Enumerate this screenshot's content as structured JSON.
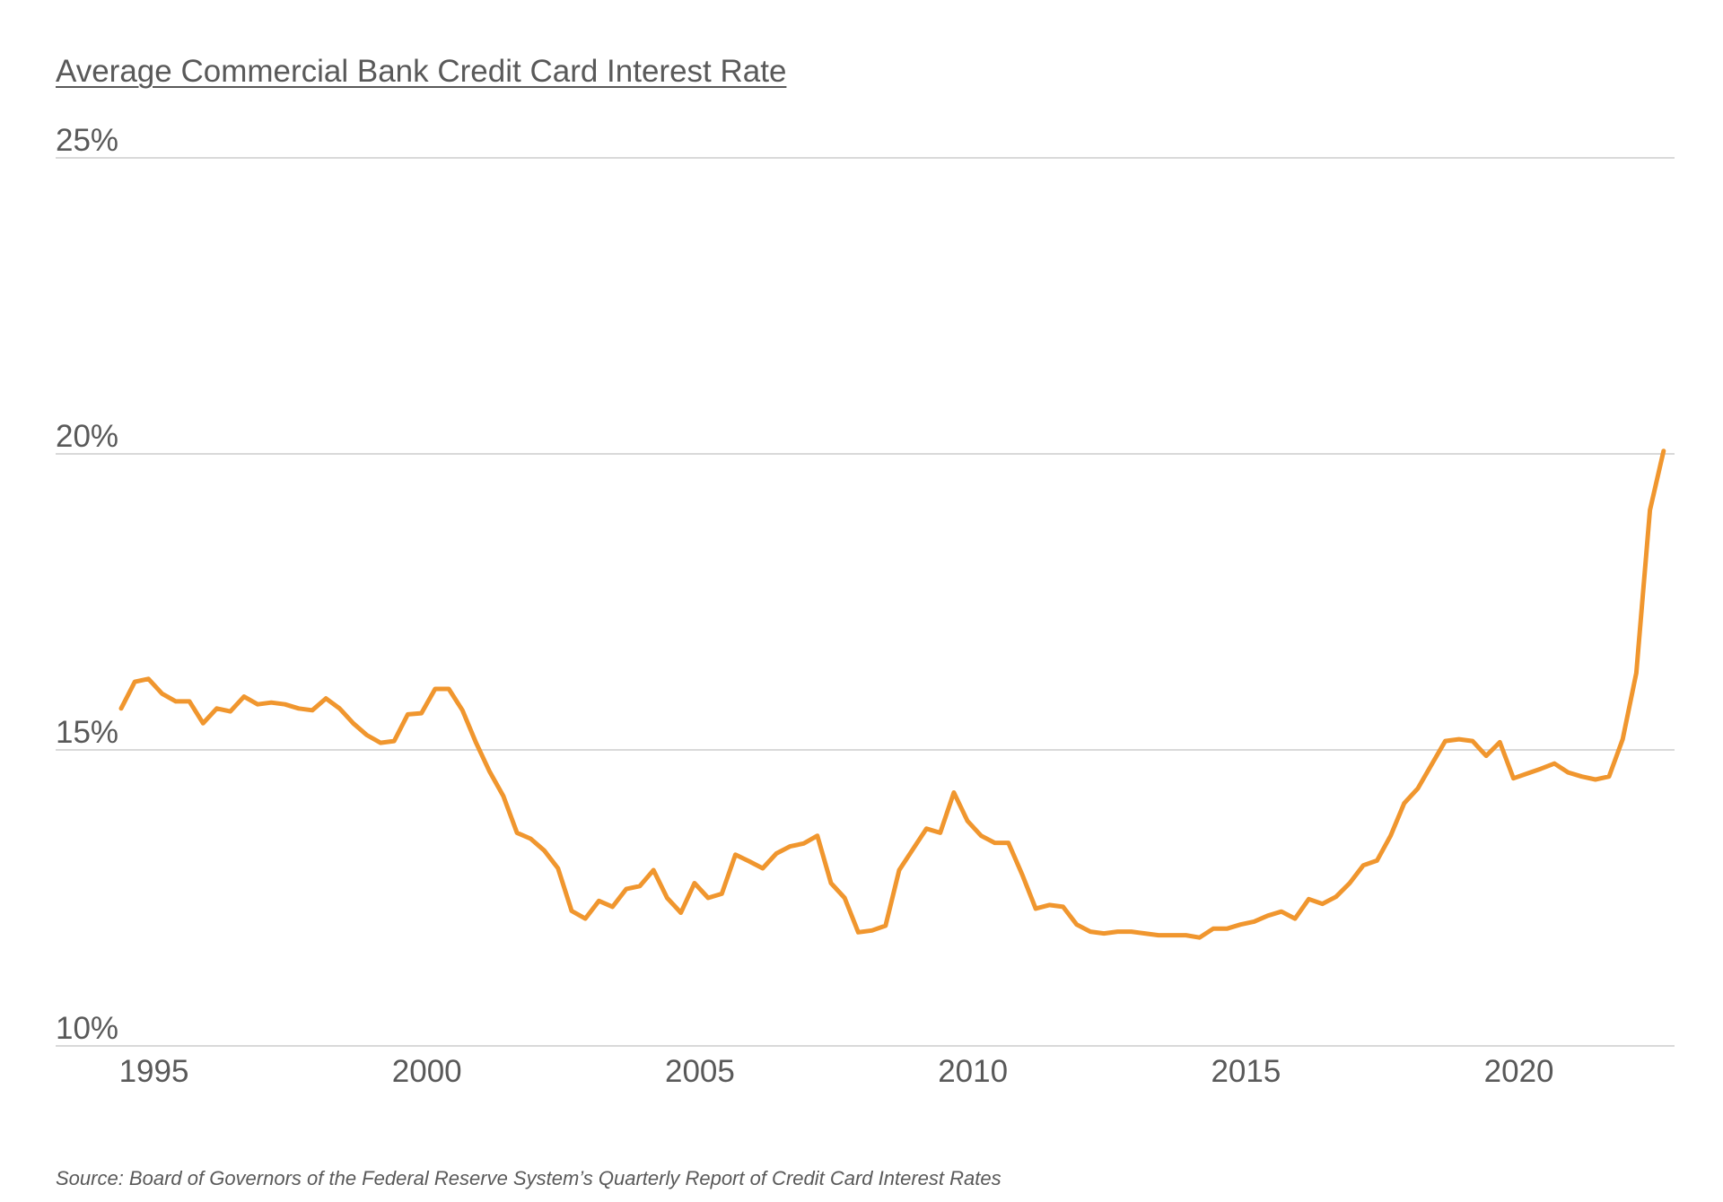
{
  "title": "Average Commercial Bank Credit Card Interest Rate",
  "source": "Source: Board of Governors of the Federal Reserve System’s Quarterly Report of Credit Card Interest Rates",
  "chart_data": {
    "type": "line",
    "title": "Average Commercial Bank Credit Card Interest Rate",
    "xlabel": "",
    "ylabel": "",
    "x_ticks": [
      1995,
      2000,
      2005,
      2010,
      2015,
      2020
    ],
    "x_tick_labels": [
      "1995",
      "2000",
      "2005",
      "2010",
      "2015",
      "2020"
    ],
    "y_ticks": [
      10,
      15,
      20,
      25
    ],
    "y_tick_labels": [
      "10%",
      "15%",
      "20%",
      "25%"
    ],
    "ylim": [
      10,
      25
    ],
    "xlim": [
      1993.2,
      2022.85
    ],
    "grid": "horizontal",
    "line_color": "#F0962E",
    "grid_color": "#D9D9D9",
    "text_color": "#595959",
    "series": [
      {
        "x": [
          1994.4,
          1994.65,
          1994.9,
          1995.15,
          1995.4,
          1995.65,
          1995.9,
          1996.15,
          1996.4,
          1996.65,
          1996.9,
          1997.15,
          1997.4,
          1997.65,
          1997.9,
          1998.15,
          1998.4,
          1998.65,
          1998.9,
          1999.15,
          1999.4,
          1999.65,
          1999.9,
          2000.15,
          2000.4,
          2000.65,
          2000.9,
          2001.15,
          2001.4,
          2001.65,
          2001.9,
          2002.15,
          2002.4,
          2002.65,
          2002.9,
          2003.15,
          2003.4,
          2003.65,
          2003.9,
          2004.15,
          2004.4,
          2004.65,
          2004.9,
          2005.15,
          2005.4,
          2005.65,
          2005.9,
          2006.15,
          2006.4,
          2006.65,
          2006.9,
          2007.15,
          2007.4,
          2007.65,
          2007.9,
          2008.15,
          2008.4,
          2008.65,
          2008.9,
          2009.15,
          2009.4,
          2009.65,
          2009.9,
          2010.15,
          2010.4,
          2010.65,
          2010.9,
          2011.15,
          2011.4,
          2011.65,
          2011.9,
          2012.15,
          2012.4,
          2012.65,
          2012.9,
          2013.15,
          2013.4,
          2013.65,
          2013.9,
          2014.15,
          2014.4,
          2014.65,
          2014.9,
          2015.15,
          2015.4,
          2015.65,
          2015.9,
          2016.15,
          2016.4,
          2016.65,
          2016.9,
          2017.15,
          2017.4,
          2017.65,
          2017.9,
          2018.15,
          2018.4,
          2018.65,
          2018.9,
          2019.15,
          2019.4,
          2019.65,
          2019.9,
          2020.15,
          2020.4,
          2020.65,
          2020.9,
          2021.15,
          2021.4,
          2021.65,
          2021.9,
          2022.15,
          2022.4,
          2022.65
        ],
        "values": [
          15.7,
          16.15,
          16.2,
          15.95,
          15.82,
          15.82,
          15.45,
          15.7,
          15.65,
          15.9,
          15.77,
          15.8,
          15.77,
          15.7,
          15.67,
          15.87,
          15.7,
          15.45,
          15.25,
          15.12,
          15.15,
          15.6,
          15.62,
          16.03,
          16.03,
          15.67,
          15.12,
          14.63,
          14.22,
          13.6,
          13.5,
          13.3,
          13.0,
          12.28,
          12.15,
          12.45,
          12.35,
          12.65,
          12.7,
          12.97,
          12.5,
          12.25,
          12.75,
          12.5,
          12.57,
          13.23,
          13.12,
          13.0,
          13.25,
          13.37,
          13.42,
          13.55,
          12.75,
          12.5,
          11.92,
          11.95,
          12.03,
          12.97,
          13.32,
          13.67,
          13.6,
          14.28,
          13.8,
          13.55,
          13.43,
          13.43,
          12.9,
          12.32,
          12.38,
          12.35,
          12.05,
          11.93,
          11.9,
          11.93,
          11.93,
          11.9,
          11.87,
          11.87,
          11.87,
          11.83,
          11.98,
          11.98,
          12.05,
          12.1,
          12.2,
          12.27,
          12.15,
          12.48,
          12.4,
          12.52,
          12.75,
          13.05,
          13.13,
          13.55,
          14.1,
          14.35,
          14.75,
          15.15,
          15.18,
          15.15,
          14.9,
          15.13,
          14.52,
          14.6,
          14.68,
          14.77,
          14.62,
          14.55,
          14.5,
          14.55,
          15.18,
          16.3,
          19.05,
          20.05
        ]
      }
    ]
  }
}
